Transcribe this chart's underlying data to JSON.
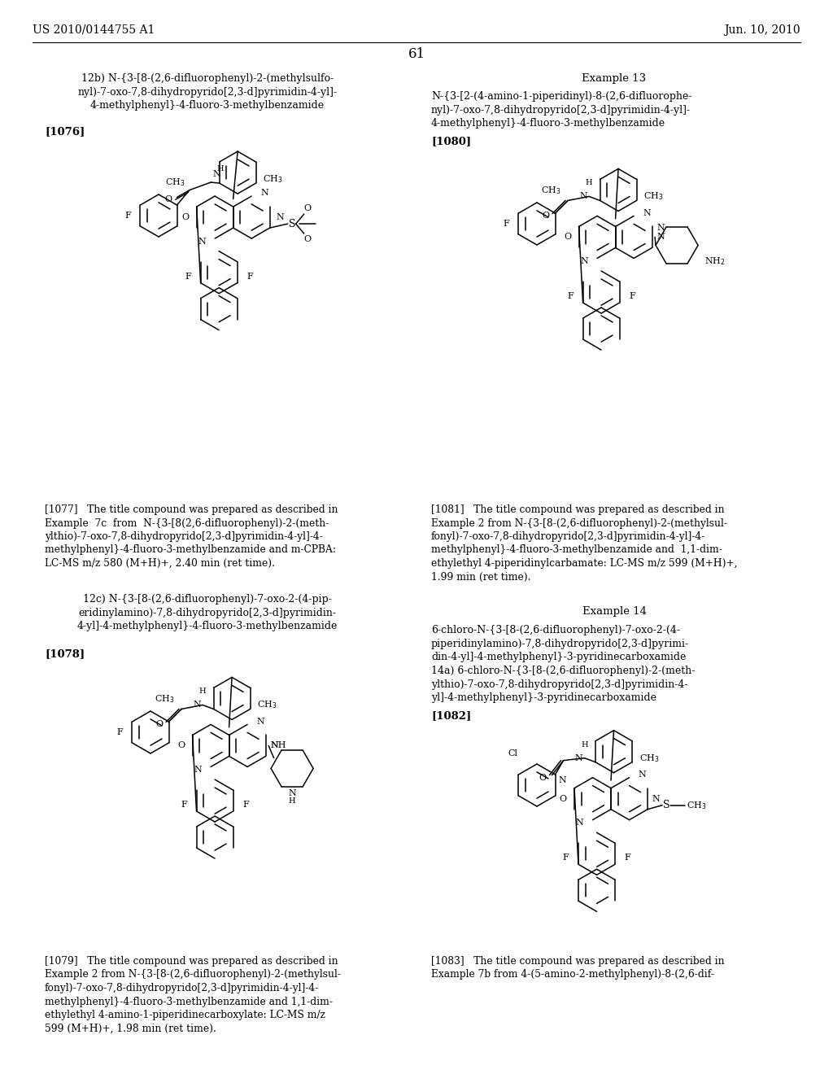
{
  "background_color": "#ffffff",
  "page_number": "61",
  "header_left": "US 2010/0144755 A1",
  "header_right": "Jun. 10, 2010",
  "title_12b": "12b) N-{3-[8-(2,6-difluorophenyl)-2-(methylsulfo-\nnyl)-7-oxo-7,8-dihydropyrido[2,3-d]pyrimidin-4-yl]-\n4-methylphenyl}-4-fluoro-3-methylbenzamide",
  "tag_1076": "[1076]",
  "title_ex13": "Example 13",
  "title_13": "N-{3-[2-(4-amino-1-piperidinyl)-8-(2,6-difluorophe-\nnyl)-7-oxo-7,8-dihydropyrido[2,3-d]pyrimidin-4-yl]-\n4-methylphenyl}-4-fluoro-3-methylbenzamide",
  "tag_1080": "[1080]",
  "body_1077": "[1077]   The title compound was prepared as described in\nExample  7c  from  N-{3-[8(2,6-difluorophenyl)-2-(meth-\nylthio)-7-oxo-7,8-dihydropyrido[2,3-d]pyrimidin-4-yl]-4-\nmethylphenyl}-4-fluoro-3-methylbenzamide and m-CPBA:\nLC-MS m/z 580 (M+H)+, 2.40 min (ret time).",
  "body_1081": "[1081]   The title compound was prepared as described in\nExample 2 from N-{3-[8-(2,6-difluorophenyl)-2-(methylsul-\nfonyl)-7-oxo-7,8-dihydropyrido[2,3-d]pyrimidin-4-yl]-4-\nmethylphenyl}-4-fluoro-3-methylbenzamide and  1,1-dim-\nethylethyl 4-piperidinylcarbamate: LC-MS m/z 599 (M+H)+,\n1.99 min (ret time).",
  "title_12c": "12c) N-{3-[8-(2,6-difluorophenyl)-7-oxo-2-(4-pip-\neridinylamino)-7,8-dihydropyrido[2,3-d]pyrimidin-\n4-yl]-4-methylphenyl}-4-fluoro-3-methylbenzamide",
  "tag_1078": "[1078]",
  "title_ex14": "Example 14",
  "title_14": "6-chloro-N-{3-[8-(2,6-difluorophenyl)-7-oxo-2-(4-\npiperidinylaminо)-7,8-dihydropyrido[2,3-d]pyrimi-\ndin-4-yl]-4-methylphenyl}-3-pyridinecarboxamide",
  "title_14a": "14a) 6-chloro-N-{3-[8-(2,6-difluorophenyl)-2-(meth-\nylthio)-7-oxo-7,8-dihydropyrido[2,3-d]pyrimidin-4-\nyl]-4-methylphenyl}-3-pyridinecarboxamide",
  "tag_1082": "[1082]",
  "body_1079": "[1079]   The title compound was prepared as described in\nExample 2 from N-{3-[8-(2,6-difluorophenyl)-2-(methylsul-\nfonyl)-7-oxo-7,8-dihydropyrido[2,3-d]pyrimidin-4-yl]-4-\nmethylphenyl}-4-fluoro-3-methylbenzamide and 1,1-dim-\nethylethyl 4-amino-1-piperidinecarboxylate: LC-MS m/z\n599 (M+H)+, 1.98 min (ret time).",
  "body_1083": "[1083]   The title compound was prepared as described in\nExample 7b from 4-(5-amino-2-methylphenyl)-8-(2,6-dif-"
}
